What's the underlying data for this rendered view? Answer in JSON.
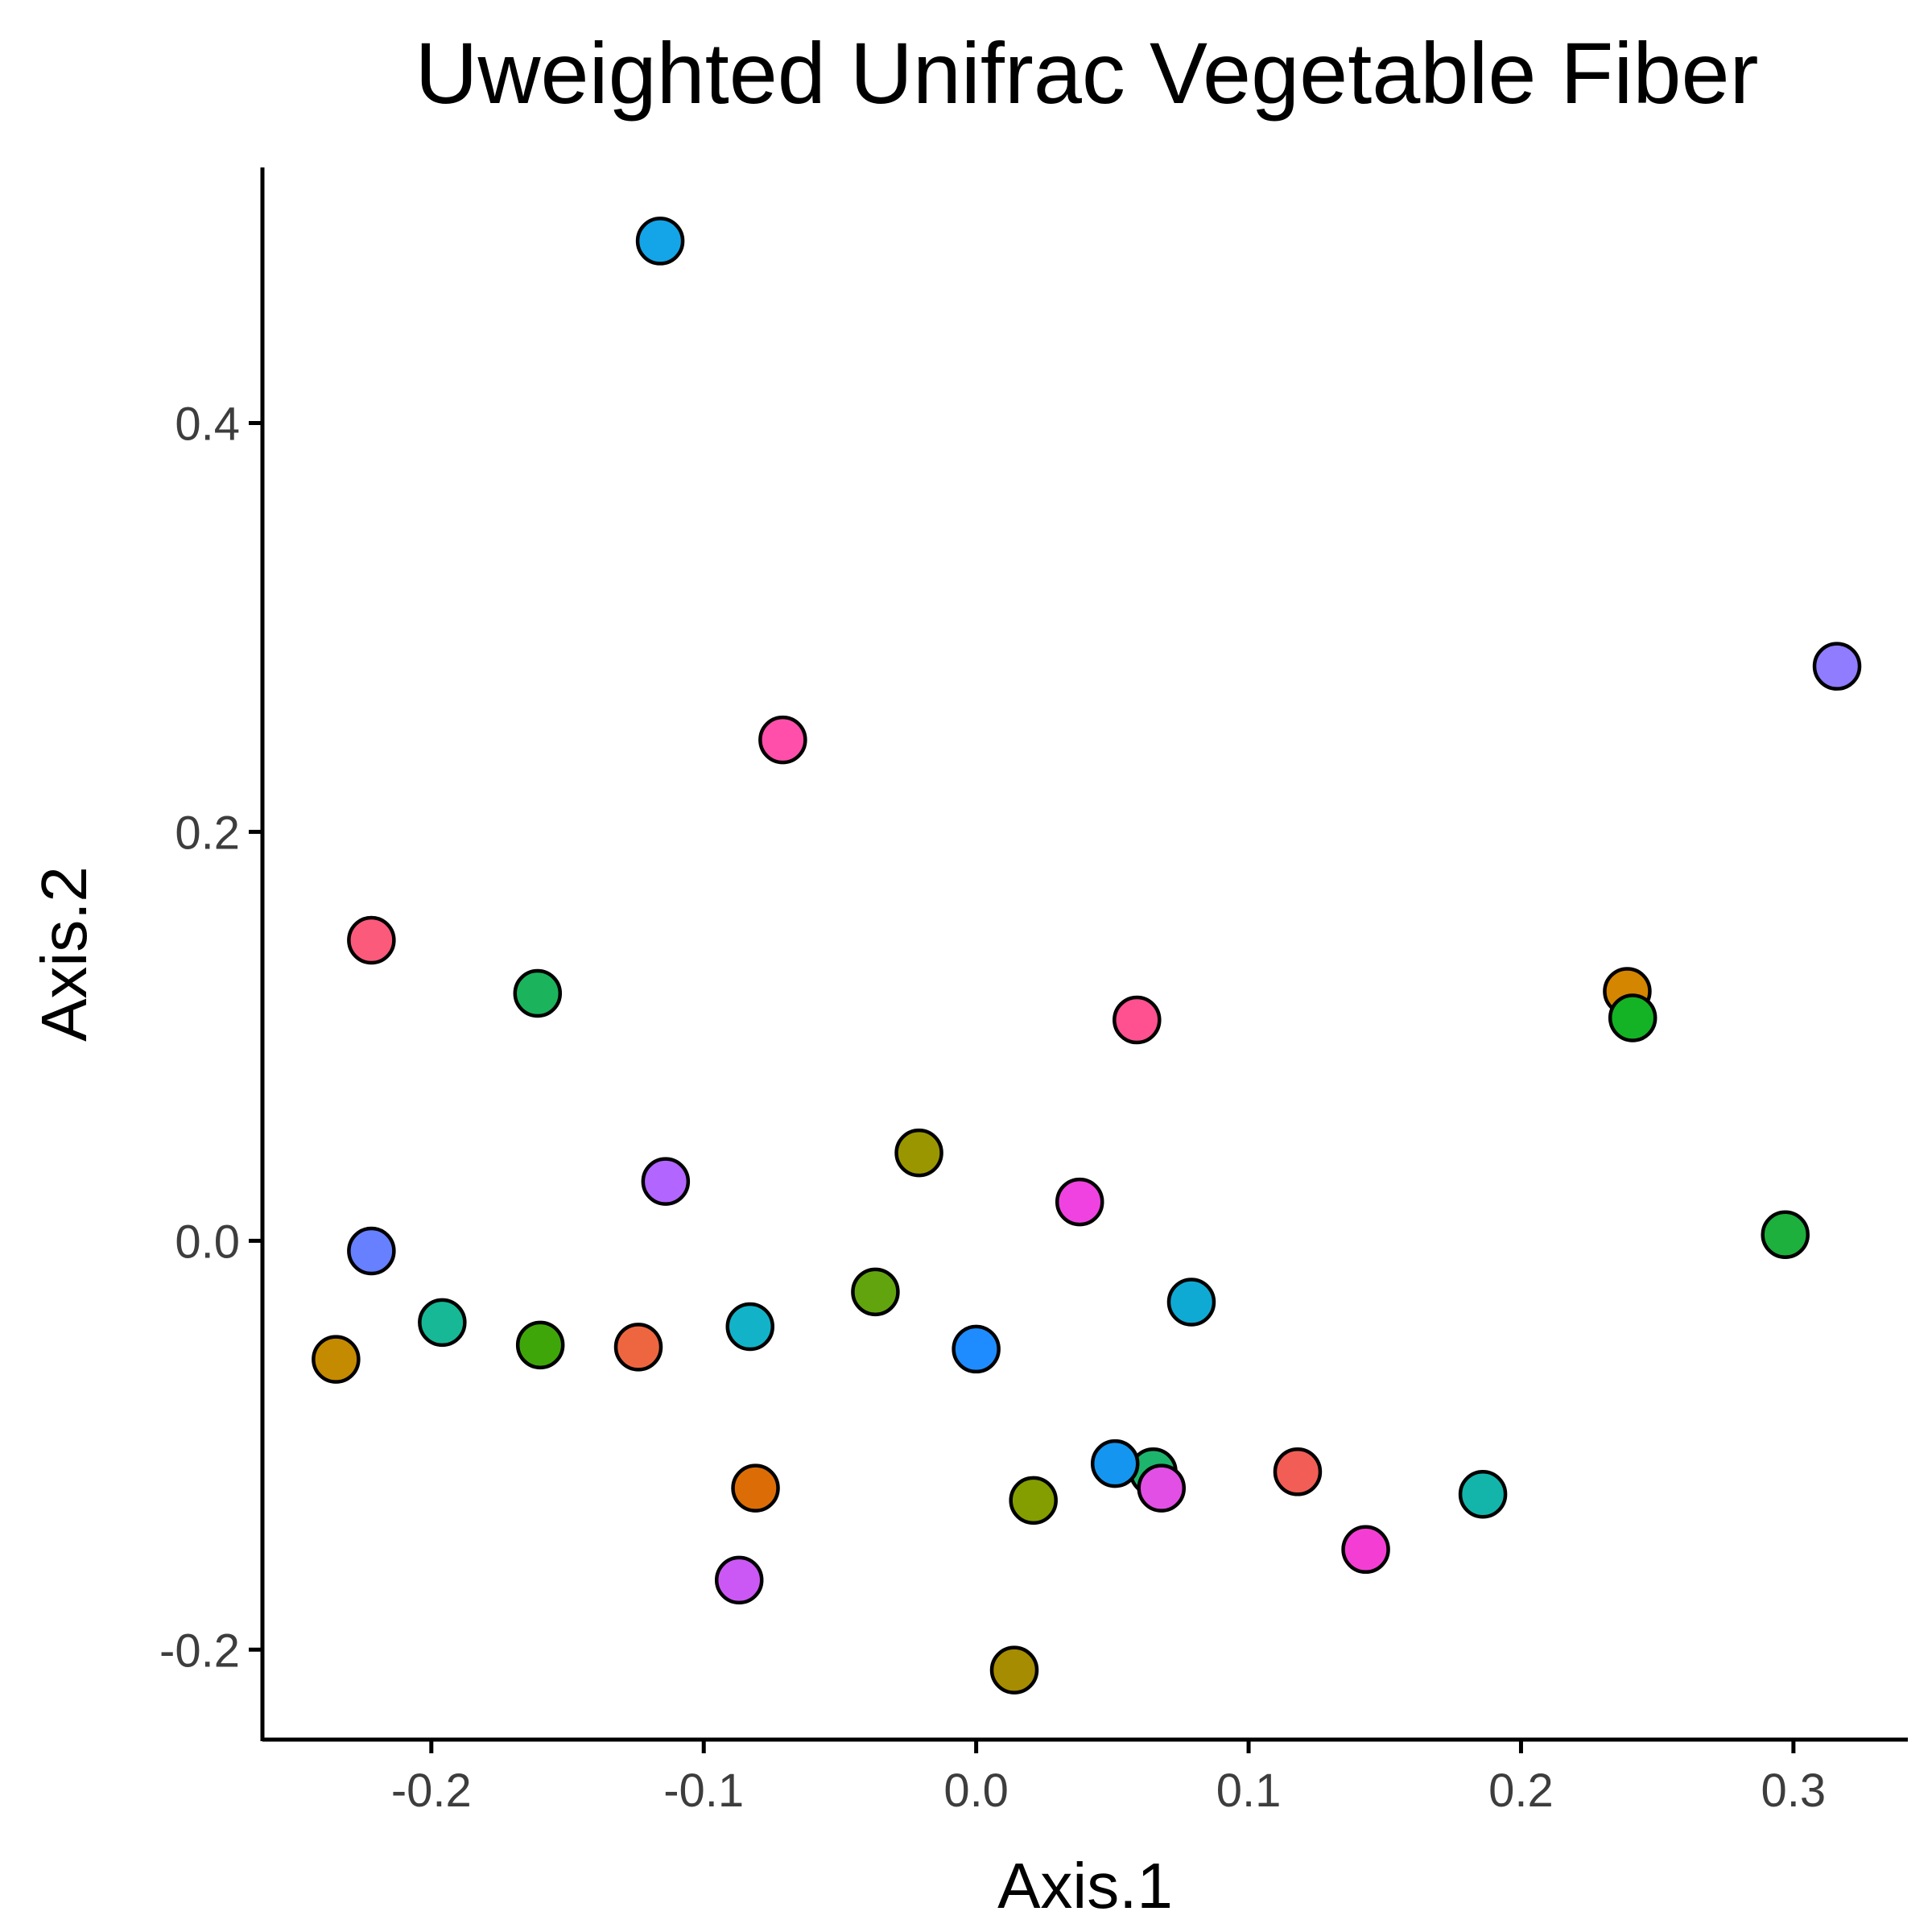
{
  "chart_data": {
    "type": "scatter",
    "title": "Uweighted Unifrac Vegetable Fiber",
    "xlabel": "Axis.1",
    "ylabel": "Axis.2",
    "xlim": [
      -0.262,
      0.342
    ],
    "ylim": [
      -0.244,
      0.525
    ],
    "xticks": [
      {
        "value": -0.2,
        "label": "-0.2"
      },
      {
        "value": -0.1,
        "label": "-0.1"
      },
      {
        "value": 0.0,
        "label": "0.0"
      },
      {
        "value": 0.1,
        "label": "0.1"
      },
      {
        "value": 0.2,
        "label": "0.2"
      },
      {
        "value": 0.3,
        "label": "0.3"
      }
    ],
    "yticks": [
      {
        "value": -0.2,
        "label": "-0.2"
      },
      {
        "value": 0.0,
        "label": "0.0"
      },
      {
        "value": 0.2,
        "label": "0.2"
      },
      {
        "value": 0.4,
        "label": "0.4"
      }
    ],
    "grid": false,
    "legend": "none",
    "points": [
      {
        "x": -0.116,
        "y": 0.489,
        "color": "#14A5E8"
      },
      {
        "x": -0.071,
        "y": 0.245,
        "color": "#FF4FAA"
      },
      {
        "x": 0.316,
        "y": 0.281,
        "color": "#8F7CFF"
      },
      {
        "x": -0.222,
        "y": 0.147,
        "color": "#FC5A7B"
      },
      {
        "x": -0.161,
        "y": 0.121,
        "color": "#1BB45C"
      },
      {
        "x": 0.059,
        "y": 0.108,
        "color": "#FF5090"
      },
      {
        "x": 0.239,
        "y": 0.122,
        "color": "#D48600"
      },
      {
        "x": 0.241,
        "y": 0.109,
        "color": "#14B326"
      },
      {
        "x": -0.021,
        "y": 0.043,
        "color": "#9A9600"
      },
      {
        "x": -0.114,
        "y": 0.029,
        "color": "#B266FF"
      },
      {
        "x": 0.038,
        "y": 0.019,
        "color": "#F042E0"
      },
      {
        "x": 0.297,
        "y": 0.003,
        "color": "#1DB03C"
      },
      {
        "x": -0.222,
        "y": -0.005,
        "color": "#6680FF"
      },
      {
        "x": -0.037,
        "y": -0.025,
        "color": "#62A40E"
      },
      {
        "x": 0.079,
        "y": -0.03,
        "color": "#0FAAD4"
      },
      {
        "x": -0.196,
        "y": -0.04,
        "color": "#17B896"
      },
      {
        "x": -0.083,
        "y": -0.042,
        "color": "#12B3C8"
      },
      {
        "x": -0.16,
        "y": -0.051,
        "color": "#3FA60A"
      },
      {
        "x": -0.124,
        "y": -0.052,
        "color": "#EE6640"
      },
      {
        "x": 0.0,
        "y": -0.053,
        "color": "#1E8CFF"
      },
      {
        "x": -0.235,
        "y": -0.058,
        "color": "#C48A00"
      },
      {
        "x": 0.065,
        "y": -0.113,
        "color": "#1DB56C"
      },
      {
        "x": 0.051,
        "y": -0.109,
        "color": "#1496F0"
      },
      {
        "x": 0.068,
        "y": -0.121,
        "color": "#E24FE5"
      },
      {
        "x": 0.118,
        "y": -0.113,
        "color": "#F25E55"
      },
      {
        "x": -0.081,
        "y": -0.121,
        "color": "#DC6D06"
      },
      {
        "x": 0.021,
        "y": -0.127,
        "color": "#849E00"
      },
      {
        "x": 0.186,
        "y": -0.124,
        "color": "#13B5AB"
      },
      {
        "x": 0.143,
        "y": -0.151,
        "color": "#F43ED3"
      },
      {
        "x": -0.087,
        "y": -0.166,
        "color": "#CB58F5"
      },
      {
        "x": 0.014,
        "y": -0.21,
        "color": "#A68C00"
      }
    ]
  }
}
